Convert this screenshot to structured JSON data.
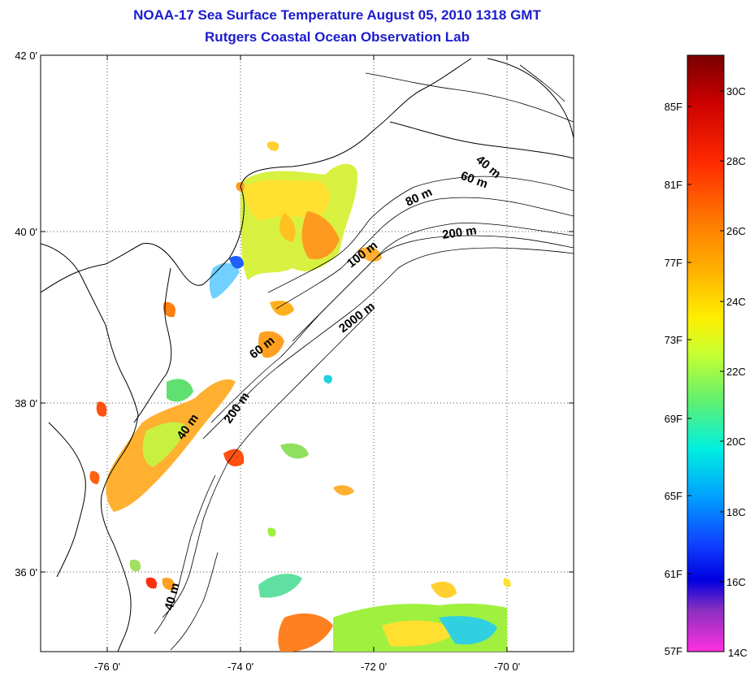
{
  "header": {
    "title_line1": "NOAA-17 Sea Surface Temperature August 05, 2010 1318 GMT",
    "title_line2": "Rutgers Coastal Ocean Observation Lab"
  },
  "map": {
    "lat_labels": [
      "42 0'",
      "40 0'",
      "38 0'",
      "36 0'"
    ],
    "lon_labels": [
      "-76 0'",
      "-74 0'",
      "-72 0'",
      "-70 0'"
    ],
    "contour_labels": [
      "40 m",
      "60 m",
      "80 m",
      "200 m",
      "100 m",
      "2000 m",
      "60 m",
      "200 m",
      "40 m",
      "40 m"
    ]
  },
  "colorbar": {
    "fahrenheit_labels": [
      "85F",
      "81F",
      "77F",
      "73F",
      "69F",
      "65F",
      "61F",
      "57F"
    ],
    "celsius_labels": [
      "30C",
      "28C",
      "26C",
      "24C",
      "22C",
      "20C",
      "18C",
      "16C",
      "14C"
    ],
    "gradient_colors": [
      "#7a0000",
      "#cc0000",
      "#ff2a00",
      "#ff7a00",
      "#ffb000",
      "#ffee00",
      "#c8ff30",
      "#60f070",
      "#00f0e0",
      "#00a0ff",
      "#1040ff",
      "#0000e0",
      "#8a2fc0",
      "#ff30e0"
    ]
  },
  "colors": {
    "title": "#1c1ccc",
    "sst_orange": "#ff9a20",
    "sst_yellow": "#ffe030",
    "sst_green": "#a0f040"
  }
}
